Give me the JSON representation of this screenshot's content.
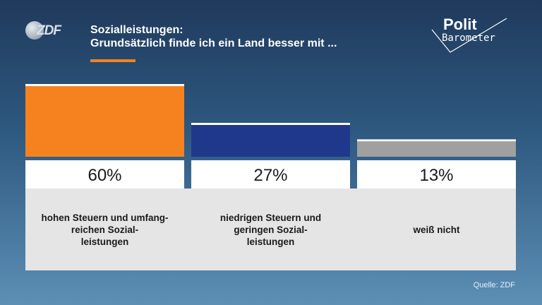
{
  "brand": {
    "logo_text": "ZDF",
    "program_line1": "Polit",
    "program_line2": "Barometer"
  },
  "header": {
    "title_line1": "Sozialleistungen:",
    "title_line2": "Grundsätzlich finde ich ein Land besser mit ..."
  },
  "source": "Quelle: ZDF",
  "colors": {
    "accent": "#f6821f",
    "blue": "#20388c",
    "gray": "#a0a0a0"
  },
  "chart_data": {
    "type": "bar",
    "title": "Sozialleistungen: Grundsätzlich finde ich ein Land besser mit ...",
    "categories": [
      "hohen Steuern und umfang-reichen Sozial-leistungen",
      "niedrigen Steuern und geringen Sozial-leistungen",
      "weiß nicht"
    ],
    "category_lines": [
      [
        "hohen Steuern und umfang-",
        "reichen Sozial-",
        "leistungen"
      ],
      [
        "niedrigen Steuern und",
        "geringen Sozial-",
        "leistungen"
      ],
      [
        "weiß nicht"
      ]
    ],
    "values": [
      60,
      27,
      13
    ],
    "value_labels": [
      "60%",
      "27%",
      "13%"
    ],
    "colors": [
      "#f6821f",
      "#20388c",
      "#a0a0a0"
    ],
    "ylim": [
      0,
      60
    ],
    "grid": false,
    "legend": "none"
  }
}
